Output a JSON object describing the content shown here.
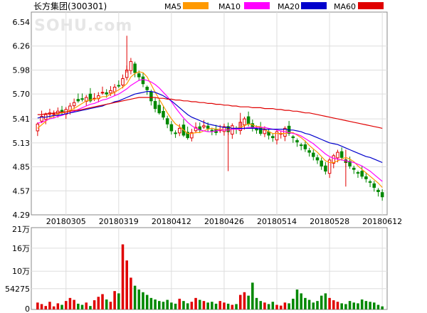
{
  "chart_data": [
    {
      "type": "candlestick",
      "title": "长方集团(300301)",
      "watermark": "SOHU.com",
      "legend": [
        {
          "name": "MA5",
          "color": "#ff9900"
        },
        {
          "name": "MA10",
          "color": "#ff00ff"
        },
        {
          "name": "MA20",
          "color": "#0000cc"
        },
        {
          "name": "MA60",
          "color": "#e00000"
        }
      ],
      "ylim": [
        4.29,
        6.54
      ],
      "yticks": [
        "6.54",
        "6.26",
        "5.98",
        "5.70",
        "5.41",
        "5.13",
        "4.85",
        "4.57",
        "4.29"
      ],
      "xticks": [
        "20180305",
        "20180319",
        "20180412",
        "20180426",
        "20180514",
        "20180528",
        "20180612"
      ],
      "xtick_index": [
        7,
        20,
        33,
        46,
        59,
        72,
        85
      ],
      "up_color": "#e00000",
      "down_color": "#008800",
      "closes": [
        5.35,
        5.44,
        5.46,
        5.48,
        5.47,
        5.5,
        5.49,
        5.52,
        5.56,
        5.6,
        5.62,
        5.64,
        5.66,
        5.62,
        5.65,
        5.68,
        5.72,
        5.7,
        5.74,
        5.78,
        5.8,
        5.88,
        5.98,
        6.08,
        5.95,
        5.9,
        5.82,
        5.75,
        5.62,
        5.53,
        5.48,
        5.43,
        5.35,
        5.27,
        5.24,
        5.3,
        5.22,
        5.19,
        5.25,
        5.31,
        5.28,
        5.33,
        5.3,
        5.27,
        5.25,
        5.28,
        5.32,
        5.26,
        5.33,
        5.29,
        5.37,
        5.41,
        5.35,
        5.3,
        5.28,
        5.24,
        5.28,
        5.22,
        5.19,
        5.26,
        5.24,
        5.3,
        5.24,
        5.19,
        5.14,
        5.1,
        5.06,
        5.02,
        4.97,
        4.93,
        4.86,
        4.8,
        4.93,
        4.98,
        5.02,
        4.96,
        4.9,
        4.86,
        4.82,
        4.78,
        4.74,
        4.71,
        4.67,
        4.61,
        4.56,
        4.5
      ],
      "ma": {
        "MA5": [
          5.3,
          5.34,
          5.38,
          5.42,
          5.44,
          5.47,
          5.48,
          5.49,
          5.51,
          5.53,
          5.56,
          5.59,
          5.62,
          5.63,
          5.64,
          5.65,
          5.67,
          5.67,
          5.7,
          5.72,
          5.75,
          5.78,
          5.82,
          5.9,
          5.94,
          5.96,
          5.95,
          5.9,
          5.81,
          5.72,
          5.64,
          5.56,
          5.48,
          5.41,
          5.35,
          5.32,
          5.28,
          5.24,
          5.24,
          5.25,
          5.25,
          5.27,
          5.29,
          5.3,
          5.29,
          5.29,
          5.28,
          5.28,
          5.29,
          5.3,
          5.31,
          5.33,
          5.35,
          5.34,
          5.32,
          5.32,
          5.29,
          5.26,
          5.24,
          5.24,
          5.24,
          5.24,
          5.25,
          5.25,
          5.22,
          5.19,
          5.15,
          5.1,
          5.06,
          5.02,
          4.97,
          4.92,
          4.9,
          4.9,
          4.92,
          4.94,
          4.96,
          4.94,
          4.91,
          4.86,
          4.82,
          4.78,
          4.74,
          4.7,
          4.66,
          4.61
        ],
        "MA10": [
          5.36,
          5.37,
          5.39,
          5.41,
          5.42,
          5.44,
          5.45,
          5.47,
          5.48,
          5.5,
          5.52,
          5.54,
          5.56,
          5.58,
          5.59,
          5.61,
          5.63,
          5.64,
          5.66,
          5.68,
          5.7,
          5.73,
          5.76,
          5.8,
          5.83,
          5.86,
          5.87,
          5.86,
          5.84,
          5.81,
          5.77,
          5.72,
          5.67,
          5.61,
          5.54,
          5.48,
          5.42,
          5.37,
          5.33,
          5.3,
          5.28,
          5.27,
          5.26,
          5.26,
          5.27,
          5.28,
          5.28,
          5.28,
          5.29,
          5.29,
          5.29,
          5.3,
          5.31,
          5.31,
          5.31,
          5.31,
          5.31,
          5.3,
          5.29,
          5.28,
          5.27,
          5.26,
          5.25,
          5.24,
          5.23,
          5.21,
          5.18,
          5.15,
          5.12,
          5.08,
          5.04,
          5.0,
          4.97,
          4.95,
          4.94,
          4.93,
          4.92,
          4.91,
          4.9,
          4.88,
          4.86,
          4.83,
          4.8,
          4.76,
          4.72,
          4.68
        ],
        "MA20": [
          5.42,
          5.43,
          5.43,
          5.44,
          5.45,
          5.45,
          5.46,
          5.47,
          5.48,
          5.49,
          5.5,
          5.51,
          5.52,
          5.53,
          5.54,
          5.55,
          5.56,
          5.58,
          5.59,
          5.61,
          5.62,
          5.64,
          5.66,
          5.68,
          5.7,
          5.71,
          5.72,
          5.73,
          5.73,
          5.72,
          5.7,
          5.68,
          5.65,
          5.62,
          5.58,
          5.54,
          5.5,
          5.46,
          5.43,
          5.41,
          5.39,
          5.37,
          5.35,
          5.34,
          5.33,
          5.32,
          5.31,
          5.31,
          5.3,
          5.3,
          5.3,
          5.3,
          5.3,
          5.3,
          5.3,
          5.29,
          5.29,
          5.29,
          5.29,
          5.29,
          5.29,
          5.29,
          5.28,
          5.28,
          5.27,
          5.26,
          5.24,
          5.23,
          5.21,
          5.19,
          5.17,
          5.15,
          5.13,
          5.12,
          5.11,
          5.09,
          5.07,
          5.05,
          5.03,
          5.01,
          4.99,
          4.97,
          4.96,
          4.94,
          4.92,
          4.9
        ],
        "MA60": [
          5.46,
          5.46,
          5.47,
          5.47,
          5.48,
          5.48,
          5.49,
          5.49,
          5.5,
          5.51,
          5.51,
          5.52,
          5.53,
          5.54,
          5.55,
          5.56,
          5.57,
          5.58,
          5.59,
          5.6,
          5.61,
          5.62,
          5.63,
          5.64,
          5.65,
          5.66,
          5.66,
          5.66,
          5.66,
          5.66,
          5.65,
          5.65,
          5.64,
          5.64,
          5.63,
          5.63,
          5.62,
          5.62,
          5.61,
          5.61,
          5.6,
          5.6,
          5.59,
          5.59,
          5.58,
          5.58,
          5.57,
          5.57,
          5.56,
          5.56,
          5.55,
          5.55,
          5.55,
          5.54,
          5.54,
          5.54,
          5.53,
          5.53,
          5.53,
          5.52,
          5.52,
          5.51,
          5.51,
          5.5,
          5.5,
          5.49,
          5.48,
          5.48,
          5.47,
          5.46,
          5.45,
          5.44,
          5.43,
          5.42,
          5.41,
          5.4,
          5.39,
          5.38,
          5.37,
          5.36,
          5.35,
          5.34,
          5.33,
          5.32,
          5.31,
          5.3
        ]
      }
    },
    {
      "type": "bar",
      "yticks": [
        "21万",
        "16万",
        "10万",
        "54275",
        "0"
      ],
      "ytick_values": [
        210000,
        160000,
        100000,
        54275,
        0
      ],
      "ylim": [
        0,
        210000
      ],
      "volumes": [
        18000,
        14000,
        9000,
        20000,
        8000,
        16000,
        12000,
        22000,
        30000,
        25000,
        15000,
        12000,
        18000,
        9000,
        24000,
        33000,
        40000,
        26000,
        20000,
        48000,
        42000,
        170000,
        128000,
        83000,
        62000,
        52000,
        45000,
        38000,
        30000,
        26000,
        22000,
        20000,
        25000,
        18000,
        15000,
        28000,
        22000,
        16000,
        20000,
        30000,
        25000,
        22000,
        18000,
        20000,
        15000,
        22000,
        18000,
        15000,
        12000,
        14000,
        38000,
        45000,
        36000,
        70000,
        30000,
        22000,
        18000,
        14000,
        20000,
        12000,
        10000,
        18000,
        16000,
        28000,
        52000,
        42000,
        30000,
        25000,
        18000,
        22000,
        36000,
        42000,
        30000,
        24000,
        20000,
        16000,
        14000,
        22000,
        18000,
        16000,
        26000,
        22000,
        20000,
        18000,
        12000,
        8000
      ]
    }
  ]
}
